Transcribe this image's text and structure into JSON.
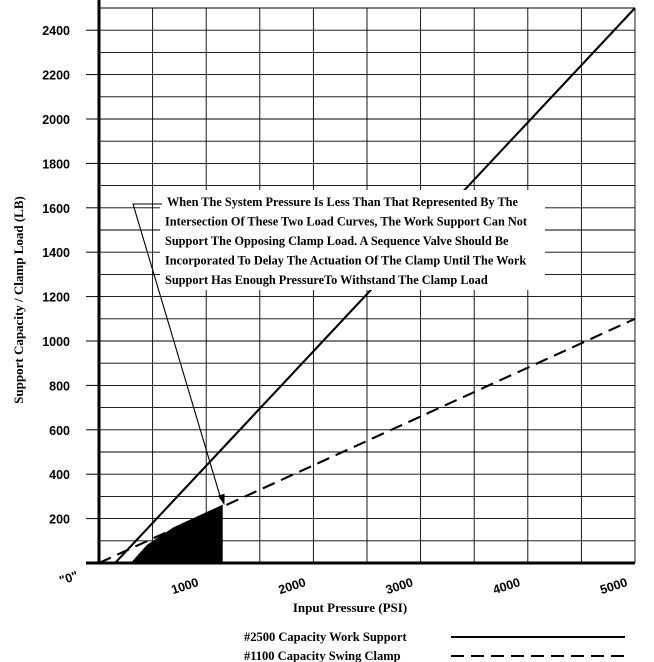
{
  "chart_data": {
    "type": "line",
    "xlabel": "Input Pressure (PSI)",
    "ylabel": "Support Capacity / Clamp Load (LB)",
    "xlim": [
      0,
      5000
    ],
    "ylim": [
      0,
      2500
    ],
    "x_ticks": [
      {
        "value": 0,
        "label": "\"0\""
      },
      {
        "value": 1000,
        "label": "1000"
      },
      {
        "value": 2000,
        "label": "2000"
      },
      {
        "value": 3000,
        "label": "3000"
      },
      {
        "value": 4000,
        "label": "4000"
      },
      {
        "value": 5000,
        "label": "5000"
      }
    ],
    "y_ticks": [
      {
        "value": 200,
        "label": "200"
      },
      {
        "value": 400,
        "label": "400"
      },
      {
        "value": 600,
        "label": "600"
      },
      {
        "value": 800,
        "label": "800"
      },
      {
        "value": 1000,
        "label": "1000"
      },
      {
        "value": 1200,
        "label": "1200"
      },
      {
        "value": 1400,
        "label": "1400"
      },
      {
        "value": 1600,
        "label": "1600"
      },
      {
        "value": 1800,
        "label": "1800"
      },
      {
        "value": 2000,
        "label": "2000"
      },
      {
        "value": 2200,
        "label": "2200"
      },
      {
        "value": 2400,
        "label": "2400"
      }
    ],
    "grid": true,
    "x_minor_step": 500,
    "y_minor_step": 100,
    "series": [
      {
        "name": "#2500 Capacity Work Support",
        "style": "solid",
        "x": [
          150,
          5000
        ],
        "y": [
          0,
          2500
        ]
      },
      {
        "name": "#1100 Capacity Swing Clamp",
        "style": "dashed",
        "x": [
          0,
          5000
        ],
        "y": [
          0,
          1100
        ]
      }
    ],
    "shaded_region": {
      "description_points_x": [
        150,
        1150,
        1150,
        700,
        450,
        300
      ],
      "description_points_y": [
        0,
        0,
        260,
        160,
        80,
        0
      ]
    },
    "annotation": {
      "lines": [
        "When The System Pressure Is Less Than That Represented By The",
        "Intersection Of These Two Load Curves, The Work Support Can Not",
        "Support The Opposing Clamp Load.  A Sequence Valve Should Be",
        "Incorporated To Delay The Actuation Of The Clamp Until The Work",
        "Support Has Enough PressureTo Withstand The Clamp Load"
      ],
      "arrow_target": {
        "x": 1170,
        "y": 260
      }
    },
    "legend_position": "bottom-right",
    "colors": {
      "line": "#000000",
      "grid": "#000000",
      "background": "#ffffff"
    }
  }
}
